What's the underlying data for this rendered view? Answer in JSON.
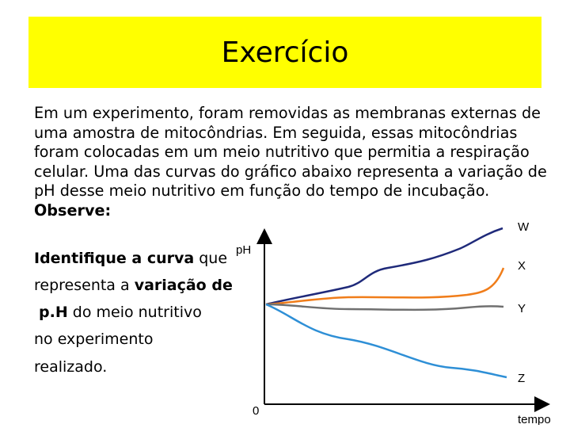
{
  "slide": {
    "title": "Exercício",
    "title_bg": "#ffff00",
    "intro": "Em um experimento, foram removidas as membranas externas de uma amostra de mitocôndrias. Em seguida, essas mitocôndrias foram colocadas em um meio nutritivo que permitia a respiração celular. Uma das curvas do gráfico abaixo representa a variação de pH desse meio nutritivo em função do tempo de incubação.",
    "observe": "Observe:",
    "question": {
      "l1_bold": "Identifique a curva",
      "l1_rest": " que",
      "l2_plain": "representa a ",
      "l2_bold": "variação de",
      "l3_bold": "p.H",
      "l3_rest": " do meio nutritivo",
      "l4": "no experimento",
      "l5": "realizado."
    }
  },
  "chart_data": {
    "type": "line",
    "xlabel": "tempo",
    "ylabel": "pH",
    "origin_label": "0",
    "series": [
      {
        "name": "W",
        "color": "#1f2a7a"
      },
      {
        "name": "X",
        "color": "#f07d1a"
      },
      {
        "name": "Y",
        "color": "#707070"
      },
      {
        "name": "Z",
        "color": "#2e8fd6"
      }
    ]
  }
}
